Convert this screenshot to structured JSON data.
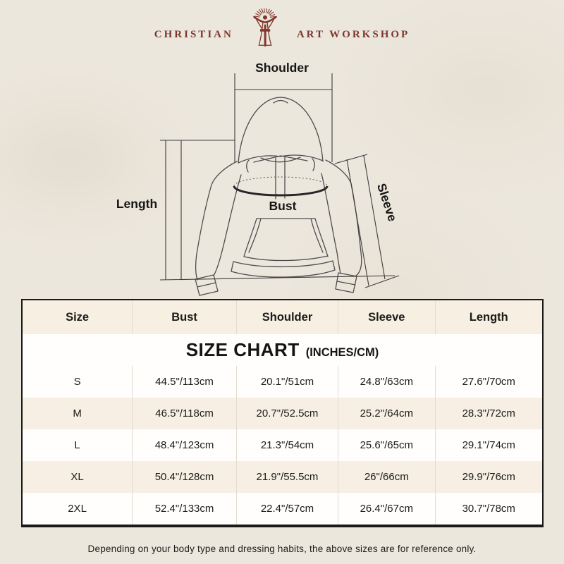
{
  "logo": {
    "left_text": "CHRISTIAN",
    "right_text": "ART WORKSHOP",
    "color": "#7c372d",
    "figure_icon": "jesus-open-arms-icon"
  },
  "diagram": {
    "labels": {
      "shoulder": "Shoulder",
      "length": "Length",
      "bust": "Bust",
      "sleeve": "Sleeve"
    },
    "line_color": "#4d4d4d",
    "dimension_color": "#3c3c3c"
  },
  "size_chart": {
    "title": "SIZE CHART",
    "title_suffix": "(INCHES/CM)",
    "columns": [
      "Size",
      "Bust",
      "Shoulder",
      "Sleeve",
      "Length"
    ],
    "rows": [
      [
        "S",
        "44.5\"/113cm",
        "20.1\"/51cm",
        "24.8\"/63cm",
        "27.6\"/70cm"
      ],
      [
        "M",
        "46.5\"/118cm",
        "20.7\"/52.5cm",
        "25.2\"/64cm",
        "28.3\"/72cm"
      ],
      [
        "L",
        "48.4\"/123cm",
        "21.3\"/54cm",
        "25.6\"/65cm",
        "29.1\"/74cm"
      ],
      [
        "XL",
        "50.4\"/128cm",
        "21.9\"/55.5cm",
        "26\"/66cm",
        "29.9\"/76cm"
      ],
      [
        "2XL",
        "52.4\"/133cm",
        "22.4\"/57cm",
        "26.4\"/67cm",
        "30.7\"/78cm"
      ]
    ],
    "colors": {
      "title_row_bg": "#e8dfd1",
      "header_row_bg": "#f6efe2",
      "alt_row_bg": "#f7efe3",
      "row_bg": "#ffffff",
      "border": "#1a1a1a"
    }
  },
  "footer": {
    "note": "Depending on your body type and dressing habits, the above sizes are for reference only."
  }
}
